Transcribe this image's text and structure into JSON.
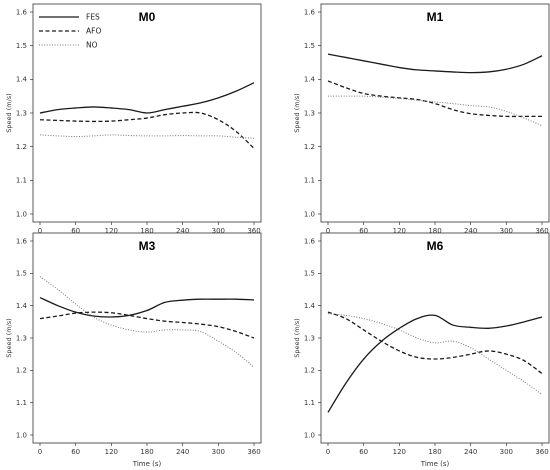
{
  "chart_data": [
    {
      "type": "line",
      "title": "M0",
      "xlabel": "",
      "ylabel": "Speed (m/s)",
      "xlim": [
        0,
        360
      ],
      "ylim": [
        1.0,
        1.6
      ],
      "x_ticks": [
        0,
        60,
        120,
        180,
        240,
        300,
        360
      ],
      "y_ticks": [
        1.0,
        1.1,
        1.2,
        1.3,
        1.4,
        1.5,
        1.6
      ],
      "y_tick_labels": [
        "1.0",
        "1.1",
        "1.2",
        "1.3",
        "1.4",
        "1.5",
        "1.6"
      ],
      "legend": {
        "position": "top-left",
        "entries": [
          "FES",
          "AFO",
          "NO"
        ]
      },
      "series": [
        {
          "name": "FES",
          "x": [
            0,
            30,
            60,
            90,
            120,
            150,
            180,
            210,
            240,
            270,
            300,
            330,
            360
          ],
          "values": [
            1.3,
            1.31,
            1.315,
            1.318,
            1.315,
            1.31,
            1.3,
            1.31,
            1.32,
            1.33,
            1.345,
            1.365,
            1.39
          ]
        },
        {
          "name": "AFO",
          "x": [
            0,
            30,
            60,
            90,
            120,
            150,
            180,
            210,
            240,
            270,
            300,
            330,
            360
          ],
          "values": [
            1.28,
            1.278,
            1.276,
            1.275,
            1.276,
            1.28,
            1.285,
            1.295,
            1.3,
            1.3,
            1.28,
            1.245,
            1.195
          ]
        },
        {
          "name": "NO",
          "x": [
            0,
            30,
            60,
            90,
            120,
            150,
            180,
            210,
            240,
            270,
            300,
            330,
            360
          ],
          "values": [
            1.235,
            1.232,
            1.23,
            1.232,
            1.235,
            1.233,
            1.232,
            1.232,
            1.233,
            1.232,
            1.232,
            1.228,
            1.225
          ]
        }
      ]
    },
    {
      "type": "line",
      "title": "M1",
      "xlabel": "",
      "ylabel": "Speed (m/s)",
      "xlim": [
        0,
        360
      ],
      "ylim": [
        1.0,
        1.6
      ],
      "x_ticks": [
        0,
        60,
        120,
        180,
        240,
        300,
        360
      ],
      "y_ticks": [
        1.0,
        1.1,
        1.2,
        1.3,
        1.4,
        1.5,
        1.6
      ],
      "y_tick_labels": [
        "1.0",
        "1.1",
        "1.2",
        "1.3",
        "1.4",
        "1.5",
        "1.6"
      ],
      "series": [
        {
          "name": "FES",
          "x": [
            0,
            30,
            60,
            90,
            120,
            150,
            180,
            210,
            240,
            270,
            300,
            330,
            360
          ],
          "values": [
            1.475,
            1.465,
            1.455,
            1.445,
            1.435,
            1.428,
            1.425,
            1.422,
            1.42,
            1.422,
            1.43,
            1.445,
            1.47
          ]
        },
        {
          "name": "AFO",
          "x": [
            0,
            30,
            60,
            90,
            120,
            150,
            180,
            210,
            240,
            270,
            300,
            330,
            360
          ],
          "values": [
            1.395,
            1.375,
            1.358,
            1.35,
            1.345,
            1.34,
            1.328,
            1.31,
            1.298,
            1.293,
            1.29,
            1.29,
            1.29
          ]
        },
        {
          "name": "NO",
          "x": [
            0,
            30,
            60,
            90,
            120,
            150,
            180,
            210,
            240,
            270,
            300,
            330,
            360
          ],
          "values": [
            1.35,
            1.35,
            1.35,
            1.347,
            1.343,
            1.338,
            1.333,
            1.328,
            1.322,
            1.318,
            1.305,
            1.285,
            1.262
          ]
        }
      ]
    },
    {
      "type": "line",
      "title": "M3",
      "xlabel": "Time (s)",
      "ylabel": "Speed (m/s)",
      "xlim": [
        0,
        360
      ],
      "ylim": [
        1.0,
        1.6
      ],
      "x_ticks": [
        0,
        60,
        120,
        180,
        240,
        300,
        360
      ],
      "y_ticks": [
        1.0,
        1.1,
        1.2,
        1.3,
        1.4,
        1.5,
        1.6
      ],
      "y_tick_labels": [
        "1.0",
        "1.1",
        "1.2",
        "1.3",
        "1.4",
        "1.5",
        "1.6"
      ],
      "series": [
        {
          "name": "FES",
          "x": [
            0,
            30,
            60,
            90,
            120,
            150,
            180,
            210,
            240,
            270,
            300,
            330,
            360
          ],
          "values": [
            1.425,
            1.4,
            1.38,
            1.368,
            1.365,
            1.37,
            1.385,
            1.41,
            1.417,
            1.42,
            1.42,
            1.42,
            1.418
          ]
        },
        {
          "name": "AFO",
          "x": [
            0,
            30,
            60,
            90,
            120,
            150,
            180,
            210,
            240,
            270,
            300,
            330,
            360
          ],
          "values": [
            1.36,
            1.368,
            1.377,
            1.38,
            1.378,
            1.37,
            1.36,
            1.352,
            1.348,
            1.343,
            1.335,
            1.32,
            1.3
          ]
        },
        {
          "name": "NO",
          "x": [
            0,
            30,
            60,
            90,
            120,
            150,
            180,
            210,
            240,
            270,
            300,
            330,
            360
          ],
          "values": [
            1.49,
            1.45,
            1.405,
            1.365,
            1.34,
            1.325,
            1.318,
            1.325,
            1.325,
            1.32,
            1.29,
            1.255,
            1.21
          ]
        }
      ]
    },
    {
      "type": "line",
      "title": "M6",
      "xlabel": "Time (s)",
      "ylabel": "Speed (m/s)",
      "xlim": [
        0,
        360
      ],
      "ylim": [
        1.0,
        1.6
      ],
      "x_ticks": [
        0,
        60,
        120,
        180,
        240,
        300,
        360
      ],
      "y_ticks": [
        1.0,
        1.1,
        1.2,
        1.3,
        1.4,
        1.5,
        1.6
      ],
      "y_tick_labels": [
        "1.0",
        "1.1",
        "1.2",
        "1.3",
        "1.4",
        "1.5",
        "1.6"
      ],
      "series": [
        {
          "name": "FES",
          "x": [
            0,
            30,
            60,
            90,
            120,
            150,
            180,
            210,
            240,
            270,
            300,
            330,
            360
          ],
          "values": [
            1.07,
            1.16,
            1.235,
            1.29,
            1.33,
            1.36,
            1.37,
            1.34,
            1.333,
            1.33,
            1.337,
            1.35,
            1.365
          ]
        },
        {
          "name": "AFO",
          "x": [
            0,
            30,
            60,
            90,
            120,
            150,
            180,
            210,
            240,
            270,
            300,
            330,
            360
          ],
          "values": [
            1.38,
            1.36,
            1.325,
            1.29,
            1.26,
            1.24,
            1.235,
            1.24,
            1.25,
            1.26,
            1.25,
            1.23,
            1.19
          ]
        },
        {
          "name": "NO",
          "x": [
            0,
            30,
            60,
            90,
            120,
            150,
            180,
            210,
            240,
            270,
            300,
            330,
            360
          ],
          "values": [
            1.375,
            1.37,
            1.36,
            1.345,
            1.325,
            1.3,
            1.285,
            1.29,
            1.27,
            1.235,
            1.2,
            1.165,
            1.125
          ]
        }
      ]
    }
  ]
}
